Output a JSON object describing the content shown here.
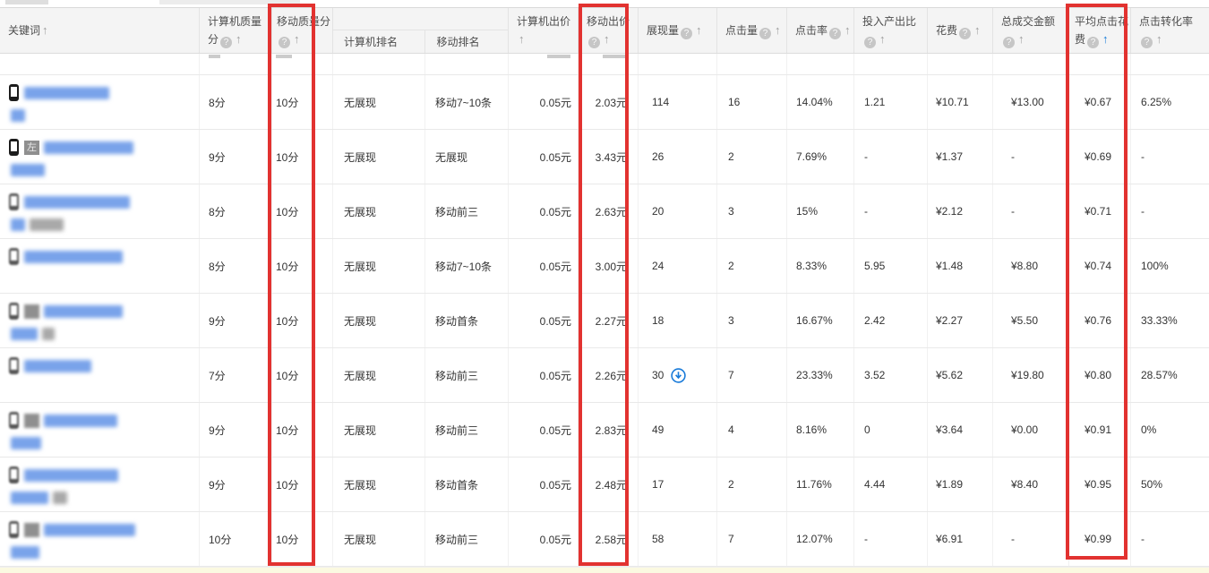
{
  "header": {
    "keyword": {
      "label": "关键词"
    },
    "pc_quality": {
      "label": "计算机质量分",
      "help": true
    },
    "mobile_quality": {
      "label": "移动质量分",
      "help": true,
      "highlighted": true
    },
    "pc_rank": {
      "label": "计算机排名"
    },
    "mobile_rank": {
      "label": "移动排名"
    },
    "pc_bid": {
      "label": "计算机出价"
    },
    "mobile_bid": {
      "label": "移动出价",
      "help": true,
      "highlighted": true
    },
    "impressions": {
      "label": "展现量",
      "help": true
    },
    "clicks": {
      "label": "点击量",
      "help": true
    },
    "ctr": {
      "label": "点击率",
      "help": true
    },
    "roi": {
      "label": "投入产出比",
      "help": true
    },
    "cost": {
      "label": "花费",
      "help": true
    },
    "gmv": {
      "label": "总成交金额",
      "help": true
    },
    "avg_cpc": {
      "label": "平均点击花费",
      "help": true,
      "sorted_asc": true,
      "highlighted": true
    },
    "cvr": {
      "label": "点击转化率",
      "help": true
    }
  },
  "colors": {
    "highlight_red": "#e23230",
    "sort_active_blue": "#157bd8",
    "keyword_blur_blue": "#79a3ea",
    "header_bg": "#f4f4f4",
    "bottom_bar_yellow": "#fbf9e1"
  },
  "rows": [
    {
      "kw": {
        "badge": null,
        "w1": 95,
        "line2": [
          [
            "blue",
            16
          ]
        ]
      },
      "pcq": "8分",
      "mbq": "10分",
      "pcr": "无展现",
      "mbr": "移动7~10条",
      "pcb": "0.05元",
      "mbb": "2.03元",
      "imp": "114",
      "imp_icon": false,
      "clk": "16",
      "ctr": "14.04%",
      "roi": "1.21",
      "cost": "¥10.71",
      "gmv": "¥13.00",
      "avg": "¥0.67",
      "cvr": "6.25%"
    },
    {
      "kw": {
        "badge": "左",
        "w1": 100,
        "line2": [
          [
            "blue",
            38
          ]
        ]
      },
      "pcq": "9分",
      "mbq": "10分",
      "pcr": "无展现",
      "mbr": "无展现",
      "pcb": "0.05元",
      "mbb": "3.43元",
      "imp": "26",
      "imp_icon": false,
      "clk": "2",
      "ctr": "7.69%",
      "roi": "-",
      "cost": "¥1.37",
      "gmv": "-",
      "avg": "¥0.69",
      "cvr": "-"
    },
    {
      "kw": {
        "badge": null,
        "w1": 118,
        "line2": [
          [
            "blue",
            16
          ],
          [
            "gray",
            38
          ]
        ]
      },
      "pcq": "8分",
      "mbq": "10分",
      "pcr": "无展现",
      "mbr": "移动前三",
      "pcb": "0.05元",
      "mbb": "2.63元",
      "imp": "20",
      "imp_icon": false,
      "clk": "3",
      "ctr": "15%",
      "roi": "-",
      "cost": "¥2.12",
      "gmv": "-",
      "avg": "¥0.71",
      "cvr": "-"
    },
    {
      "kw": {
        "badge": null,
        "w1": 110,
        "line2": []
      },
      "pcq": "8分",
      "mbq": "10分",
      "pcr": "无展现",
      "mbr": "移动7~10条",
      "pcb": "0.05元",
      "mbb": "3.00元",
      "imp": "24",
      "imp_icon": false,
      "clk": "2",
      "ctr": "8.33%",
      "roi": "5.95",
      "cost": "¥1.48",
      "gmv": "¥8.80",
      "avg": "¥0.74",
      "cvr": "100%"
    },
    {
      "kw": {
        "badge": "",
        "w1": 88,
        "line2": [
          [
            "blue",
            30
          ],
          [
            "gray",
            14
          ]
        ]
      },
      "pcq": "9分",
      "mbq": "10分",
      "pcr": "无展现",
      "mbr": "移动首条",
      "pcb": "0.05元",
      "mbb": "2.27元",
      "imp": "18",
      "imp_icon": false,
      "clk": "3",
      "ctr": "16.67%",
      "roi": "2.42",
      "cost": "¥2.27",
      "gmv": "¥5.50",
      "avg": "¥0.76",
      "cvr": "33.33%"
    },
    {
      "kw": {
        "badge": null,
        "w1": 75,
        "line2": []
      },
      "pcq": "7分",
      "mbq": "10分",
      "pcr": "无展现",
      "mbr": "移动前三",
      "pcb": "0.05元",
      "mbb": "2.26元",
      "imp": "30",
      "imp_icon": true,
      "clk": "7",
      "ctr": "23.33%",
      "roi": "3.52",
      "cost": "¥5.62",
      "gmv": "¥19.80",
      "avg": "¥0.80",
      "cvr": "28.57%"
    },
    {
      "kw": {
        "badge": "",
        "w1": 82,
        "line2": [
          [
            "blue",
            34
          ]
        ]
      },
      "pcq": "9分",
      "mbq": "10分",
      "pcr": "无展现",
      "mbr": "移动前三",
      "pcb": "0.05元",
      "mbb": "2.83元",
      "imp": "49",
      "imp_icon": false,
      "clk": "4",
      "ctr": "8.16%",
      "roi": "0",
      "cost": "¥3.64",
      "gmv": "¥0.00",
      "avg": "¥0.91",
      "cvr": "0%"
    },
    {
      "kw": {
        "badge": null,
        "w1": 105,
        "line2": [
          [
            "blue",
            42
          ],
          [
            "gray",
            16
          ]
        ]
      },
      "pcq": "9分",
      "mbq": "10分",
      "pcr": "无展现",
      "mbr": "移动首条",
      "pcb": "0.05元",
      "mbb": "2.48元",
      "imp": "17",
      "imp_icon": false,
      "clk": "2",
      "ctr": "11.76%",
      "roi": "4.44",
      "cost": "¥1.89",
      "gmv": "¥8.40",
      "avg": "¥0.95",
      "cvr": "50%"
    },
    {
      "kw": {
        "badge": "",
        "w1": 102,
        "line2": [
          [
            "blue",
            32
          ]
        ]
      },
      "pcq": "10分",
      "mbq": "10分",
      "pcr": "无展现",
      "mbr": "移动前三",
      "pcb": "0.05元",
      "mbb": "2.58元",
      "imp": "58",
      "imp_icon": false,
      "clk": "7",
      "ctr": "12.07%",
      "roi": "-",
      "cost": "¥6.91",
      "gmv": "-",
      "avg": "¥0.99",
      "cvr": "-"
    }
  ]
}
